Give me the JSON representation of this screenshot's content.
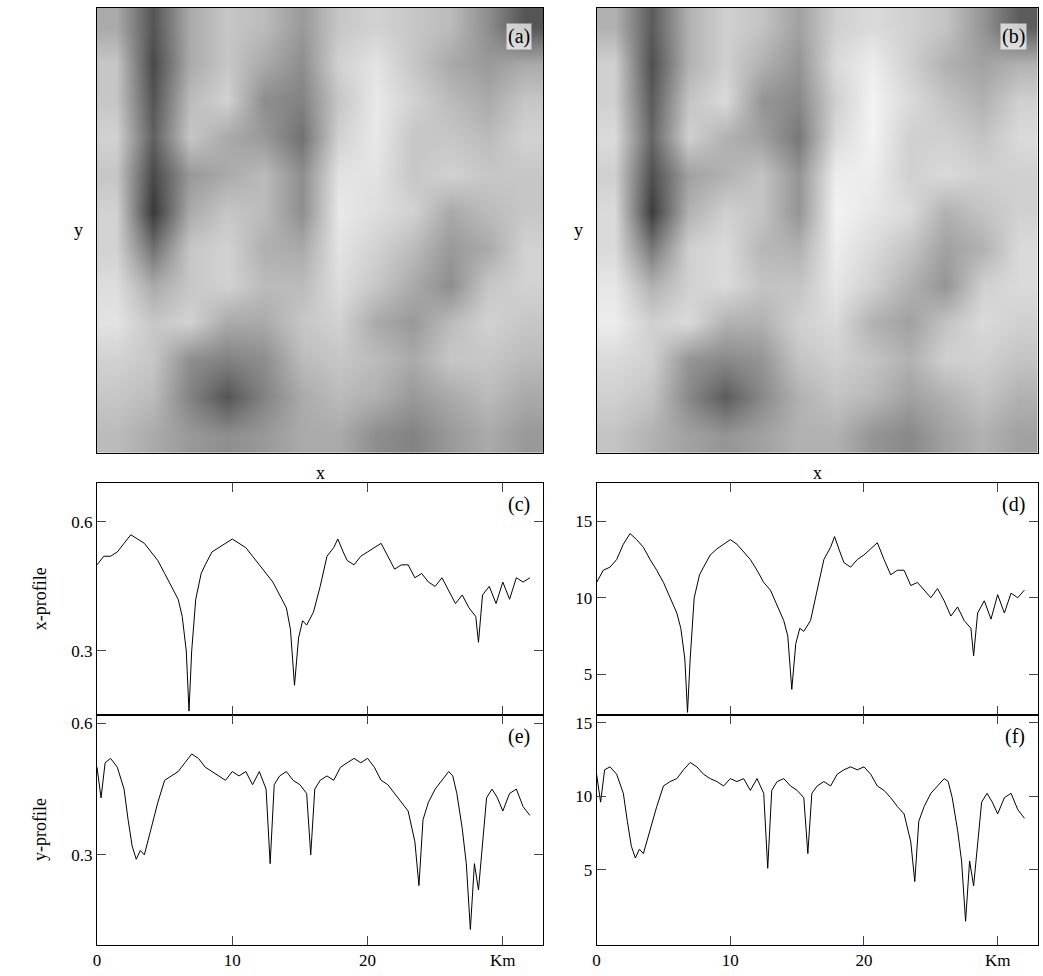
{
  "chart_data": [
    {
      "type": "heatmap",
      "title": "(a)",
      "xlabel": "x",
      "ylabel": "y",
      "tick_labels": false,
      "zlim": [
        0.15,
        0.6
      ],
      "z": [
        [
          0.45,
          0.3,
          0.45,
          0.5,
          0.48,
          0.42,
          0.5,
          0.52,
          0.5,
          0.48,
          0.4,
          0.3
        ],
        [
          0.5,
          0.28,
          0.45,
          0.5,
          0.45,
          0.4,
          0.52,
          0.55,
          0.5,
          0.45,
          0.42,
          0.45
        ],
        [
          0.5,
          0.3,
          0.48,
          0.52,
          0.4,
          0.38,
          0.5,
          0.56,
          0.52,
          0.48,
          0.45,
          0.5
        ],
        [
          0.52,
          0.32,
          0.5,
          0.45,
          0.42,
          0.35,
          0.52,
          0.56,
          0.5,
          0.5,
          0.48,
          0.52
        ],
        [
          0.5,
          0.28,
          0.42,
          0.45,
          0.48,
          0.4,
          0.55,
          0.55,
          0.5,
          0.52,
          0.5,
          0.5
        ],
        [
          0.52,
          0.25,
          0.45,
          0.5,
          0.48,
          0.4,
          0.56,
          0.54,
          0.52,
          0.45,
          0.48,
          0.5
        ],
        [
          0.52,
          0.35,
          0.5,
          0.52,
          0.46,
          0.45,
          0.55,
          0.52,
          0.48,
          0.42,
          0.45,
          0.52
        ],
        [
          0.54,
          0.45,
          0.5,
          0.52,
          0.48,
          0.48,
          0.54,
          0.5,
          0.45,
          0.4,
          0.5,
          0.52
        ],
        [
          0.55,
          0.5,
          0.52,
          0.45,
          0.45,
          0.5,
          0.52,
          0.45,
          0.42,
          0.48,
          0.52,
          0.5
        ],
        [
          0.52,
          0.5,
          0.4,
          0.38,
          0.4,
          0.48,
          0.5,
          0.48,
          0.45,
          0.5,
          0.5,
          0.48
        ],
        [
          0.5,
          0.48,
          0.38,
          0.3,
          0.38,
          0.45,
          0.48,
          0.46,
          0.42,
          0.45,
          0.48,
          0.45
        ],
        [
          0.48,
          0.45,
          0.42,
          0.4,
          0.42,
          0.45,
          0.45,
          0.4,
          0.38,
          0.42,
          0.45,
          0.42
        ]
      ]
    },
    {
      "type": "heatmap",
      "title": "(b)",
      "xlabel": "x",
      "ylabel": "y",
      "tick_labels": false,
      "zlim": [
        2,
        14.5
      ],
      "z": [
        [
          10.7,
          6.5,
          10.7,
          12.2,
          11.6,
          9.9,
          12.2,
          12.7,
          12.2,
          11.6,
          9.3,
          6.5
        ],
        [
          12.2,
          5.9,
          10.7,
          12.2,
          10.7,
          9.3,
          12.7,
          13.6,
          12.2,
          10.7,
          9.9,
          10.7
        ],
        [
          12.2,
          6.5,
          11.6,
          12.7,
          9.3,
          8.7,
          12.2,
          13.9,
          12.7,
          11.6,
          10.7,
          12.2
        ],
        [
          12.7,
          7.0,
          12.2,
          10.7,
          9.9,
          7.9,
          12.7,
          13.9,
          12.2,
          12.2,
          11.6,
          12.7
        ],
        [
          12.2,
          5.9,
          9.9,
          10.7,
          11.6,
          9.3,
          13.6,
          13.6,
          12.2,
          12.7,
          12.2,
          12.2
        ],
        [
          12.7,
          5.0,
          10.7,
          12.2,
          11.6,
          9.3,
          13.9,
          13.3,
          12.7,
          10.7,
          11.6,
          12.2
        ],
        [
          12.7,
          7.9,
          12.2,
          12.7,
          11.0,
          10.7,
          13.6,
          12.7,
          11.6,
          9.9,
          10.7,
          12.7
        ],
        [
          13.3,
          10.7,
          12.2,
          12.7,
          11.6,
          11.6,
          13.3,
          12.2,
          10.7,
          9.3,
          12.2,
          12.7
        ],
        [
          13.6,
          12.2,
          12.7,
          10.7,
          10.7,
          12.2,
          12.7,
          10.7,
          9.9,
          11.6,
          12.7,
          12.2
        ],
        [
          12.7,
          12.2,
          9.3,
          8.7,
          9.3,
          11.6,
          12.2,
          11.6,
          10.7,
          12.2,
          12.2,
          11.6
        ],
        [
          12.2,
          11.6,
          8.7,
          6.5,
          8.7,
          10.7,
          11.6,
          11.0,
          9.9,
          10.7,
          11.6,
          10.7
        ],
        [
          11.6,
          10.7,
          9.9,
          9.3,
          9.9,
          10.7,
          10.7,
          9.3,
          8.7,
          9.9,
          10.7,
          9.9
        ]
      ]
    },
    {
      "type": "line",
      "title": "(c)",
      "ylabel": "x-profile",
      "color": "#000000",
      "tick_labels": "y",
      "xlim": [
        0,
        33
      ],
      "xticks": [
        0,
        10,
        20,
        {
          "value": 30,
          "label": "Km"
        }
      ],
      "ylim": [
        0.15,
        0.69
      ],
      "yticks": [
        0.3,
        0.6
      ],
      "x": [
        0,
        0.5,
        1,
        1.5,
        2,
        2.5,
        3,
        3.5,
        4,
        4.5,
        5,
        5.5,
        6,
        6.3,
        6.6,
        6.8,
        7,
        7.3,
        7.7,
        8,
        8.5,
        9,
        9.5,
        10,
        10.5,
        11,
        11.5,
        12,
        12.5,
        13,
        13.5,
        14,
        14.3,
        14.6,
        14.9,
        15.2,
        15.5,
        16,
        16.5,
        17,
        17.5,
        17.8,
        18.2,
        18.5,
        19,
        19.5,
        20,
        20.5,
        21,
        21.5,
        22,
        22.5,
        23,
        23.5,
        24,
        24.5,
        25,
        25.5,
        26,
        26.5,
        27,
        27.5,
        28,
        28.2,
        28.5,
        29,
        29.5,
        30,
        30.5,
        31,
        31.5,
        32
      ],
      "values": [
        0.5,
        0.52,
        0.52,
        0.53,
        0.55,
        0.57,
        0.56,
        0.55,
        0.53,
        0.51,
        0.48,
        0.45,
        0.42,
        0.38,
        0.3,
        0.16,
        0.3,
        0.42,
        0.48,
        0.5,
        0.53,
        0.54,
        0.55,
        0.56,
        0.55,
        0.54,
        0.52,
        0.5,
        0.48,
        0.46,
        0.43,
        0.4,
        0.35,
        0.22,
        0.33,
        0.37,
        0.36,
        0.39,
        0.45,
        0.52,
        0.54,
        0.56,
        0.53,
        0.51,
        0.5,
        0.52,
        0.53,
        0.54,
        0.55,
        0.52,
        0.49,
        0.5,
        0.5,
        0.47,
        0.48,
        0.46,
        0.45,
        0.47,
        0.44,
        0.41,
        0.43,
        0.4,
        0.38,
        0.32,
        0.43,
        0.45,
        0.41,
        0.46,
        0.42,
        0.47,
        0.46,
        0.47
      ]
    },
    {
      "type": "line",
      "title": "(d)",
      "color": "#000000",
      "tick_labels": "y",
      "xlim": [
        0,
        33
      ],
      "xticks": [
        0,
        10,
        20,
        {
          "value": 30,
          "label": "Km"
        }
      ],
      "ylim": [
        2.3,
        17.5
      ],
      "yticks": [
        5,
        10,
        15
      ],
      "x": [
        0,
        0.5,
        1,
        1.5,
        2,
        2.5,
        3,
        3.5,
        4,
        4.5,
        5,
        5.5,
        6,
        6.3,
        6.6,
        6.8,
        7,
        7.3,
        7.7,
        8,
        8.5,
        9,
        9.5,
        10,
        10.5,
        11,
        11.5,
        12,
        12.5,
        13,
        13.5,
        14,
        14.3,
        14.6,
        14.9,
        15.2,
        15.5,
        16,
        16.5,
        17,
        17.5,
        17.8,
        18.2,
        18.5,
        19,
        19.5,
        20,
        20.5,
        21,
        21.5,
        22,
        22.5,
        23,
        23.5,
        24,
        24.5,
        25,
        25.5,
        26,
        26.5,
        27,
        27.5,
        28,
        28.2,
        28.5,
        29,
        29.5,
        30,
        30.5,
        31,
        31.5,
        32
      ],
      "values": [
        11.0,
        11.8,
        12.0,
        12.5,
        13.5,
        14.2,
        13.8,
        13.3,
        12.5,
        11.8,
        11.0,
        10.0,
        9.0,
        8.0,
        6.0,
        2.5,
        6.0,
        10.0,
        11.5,
        12.0,
        12.8,
        13.2,
        13.5,
        13.8,
        13.5,
        13.0,
        12.5,
        11.8,
        11.0,
        10.5,
        9.5,
        8.5,
        7.5,
        4.0,
        7.0,
        8.0,
        7.8,
        8.5,
        10.5,
        12.5,
        13.3,
        14.0,
        13.0,
        12.3,
        12.0,
        12.5,
        12.8,
        13.2,
        13.6,
        12.5,
        11.5,
        11.8,
        11.8,
        10.8,
        11.0,
        10.5,
        10.0,
        10.6,
        9.8,
        8.8,
        9.4,
        8.5,
        8.0,
        6.2,
        9.0,
        9.8,
        8.6,
        10.2,
        9.0,
        10.3,
        10.0,
        10.5
      ]
    },
    {
      "type": "line",
      "title": "(e)",
      "ylabel": "y-profile",
      "color": "#000000",
      "xlim": [
        0,
        33
      ],
      "xticks": [
        0,
        10,
        20,
        {
          "value": 30,
          "label": "Km"
        }
      ],
      "ylim": [
        0.095,
        0.618
      ],
      "yticks": [
        0.3,
        0.6
      ],
      "x": [
        0,
        0.3,
        0.6,
        1,
        1.5,
        2,
        2.3,
        2.6,
        2.9,
        3.2,
        3.5,
        4,
        4.5,
        5,
        5.5,
        6,
        6.5,
        7,
        7.5,
        8,
        8.5,
        9,
        9.5,
        10,
        10.5,
        11,
        11.5,
        12,
        12.5,
        12.8,
        13.1,
        13.5,
        14,
        14.5,
        15,
        15.5,
        15.8,
        16.1,
        16.5,
        17,
        17.5,
        18,
        18.5,
        19,
        19.5,
        20,
        20.5,
        21,
        21.5,
        22,
        22.5,
        23,
        23.5,
        23.8,
        24.1,
        24.5,
        25,
        25.5,
        26,
        26.3,
        26.6,
        27,
        27.3,
        27.6,
        27.9,
        28.2,
        28.5,
        28.8,
        29.2,
        29.6,
        30,
        30.5,
        31,
        31.5,
        32
      ],
      "values": [
        0.5,
        0.43,
        0.51,
        0.52,
        0.5,
        0.45,
        0.38,
        0.32,
        0.29,
        0.31,
        0.3,
        0.36,
        0.42,
        0.47,
        0.48,
        0.49,
        0.51,
        0.53,
        0.52,
        0.5,
        0.49,
        0.48,
        0.47,
        0.49,
        0.48,
        0.49,
        0.46,
        0.49,
        0.45,
        0.28,
        0.46,
        0.48,
        0.49,
        0.47,
        0.46,
        0.44,
        0.3,
        0.45,
        0.47,
        0.48,
        0.47,
        0.5,
        0.51,
        0.52,
        0.51,
        0.52,
        0.5,
        0.47,
        0.46,
        0.44,
        0.42,
        0.4,
        0.33,
        0.23,
        0.38,
        0.42,
        0.45,
        0.47,
        0.49,
        0.48,
        0.44,
        0.36,
        0.28,
        0.13,
        0.28,
        0.22,
        0.32,
        0.43,
        0.45,
        0.43,
        0.4,
        0.44,
        0.45,
        0.41,
        0.39
      ]
    },
    {
      "type": "line",
      "title": "(f)",
      "color": "#000000",
      "xlim": [
        0,
        33
      ],
      "xticks": [
        0,
        10,
        20,
        {
          "value": 30,
          "label": "Km"
        }
      ],
      "ylim": [
        -0.1,
        15.5
      ],
      "yticks": [
        5,
        10,
        15
      ],
      "x": [
        0,
        0.3,
        0.6,
        1,
        1.5,
        2,
        2.3,
        2.6,
        2.9,
        3.2,
        3.5,
        4,
        4.5,
        5,
        5.5,
        6,
        6.5,
        7,
        7.5,
        8,
        8.5,
        9,
        9.5,
        10,
        10.5,
        11,
        11.5,
        12,
        12.5,
        12.8,
        13.1,
        13.5,
        14,
        14.5,
        15,
        15.5,
        15.8,
        16.1,
        16.5,
        17,
        17.5,
        18,
        18.5,
        19,
        19.5,
        20,
        20.5,
        21,
        21.5,
        22,
        22.5,
        23,
        23.5,
        23.8,
        24.1,
        24.5,
        25,
        25.5,
        26,
        26.3,
        26.6,
        27,
        27.3,
        27.6,
        27.9,
        28.2,
        28.5,
        28.8,
        29.2,
        29.6,
        30,
        30.5,
        31,
        31.5,
        32
      ],
      "values": [
        11.5,
        9.6,
        11.8,
        12.0,
        11.5,
        10.2,
        8.3,
        6.6,
        5.8,
        6.4,
        6.1,
        7.7,
        9.3,
        10.7,
        11.0,
        11.2,
        11.8,
        12.3,
        12.0,
        11.5,
        11.2,
        11.0,
        10.7,
        11.2,
        11.0,
        11.2,
        10.4,
        11.2,
        10.2,
        5.1,
        10.4,
        11.0,
        11.2,
        10.7,
        10.4,
        9.9,
        6.1,
        10.2,
        10.7,
        11.0,
        10.7,
        11.5,
        11.8,
        12.0,
        11.8,
        12.0,
        11.5,
        10.7,
        10.4,
        9.9,
        9.3,
        8.8,
        6.9,
        4.2,
        8.3,
        9.3,
        10.2,
        10.7,
        11.2,
        11.0,
        9.9,
        7.7,
        5.6,
        1.5,
        5.6,
        3.9,
        6.6,
        9.6,
        10.2,
        9.6,
        8.8,
        9.9,
        10.2,
        9.1,
        8.5
      ]
    }
  ]
}
